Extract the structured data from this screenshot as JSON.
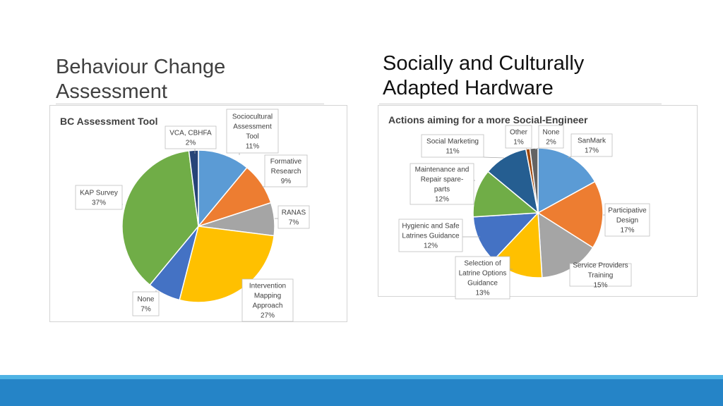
{
  "slide": {
    "left_title": "Behaviour Change Assessment",
    "right_title": "Socially and Culturally Adapted Hardware",
    "colors": {
      "footer_dark": "#2584c7",
      "footer_light": "#4fb3e4"
    }
  },
  "chart_data": [
    {
      "type": "pie",
      "title": "BC Assessment Tool",
      "slices": [
        {
          "label_lines": [
            "Sociocultural",
            "Assessment",
            "Tool",
            "11%"
          ],
          "name": "Sociocultural Assessment Tool",
          "value": 11,
          "color": "#5b9bd5"
        },
        {
          "label_lines": [
            "Formative",
            "Research",
            "9%"
          ],
          "name": "Formative Research",
          "value": 9,
          "color": "#ed7d31"
        },
        {
          "label_lines": [
            "RANAS",
            "7%"
          ],
          "name": "RANAS",
          "value": 7,
          "color": "#a5a5a5"
        },
        {
          "label_lines": [
            "Intervention",
            "Mapping",
            "Approach",
            "27%"
          ],
          "name": "Intervention Mapping Approach",
          "value": 27,
          "color": "#ffc000"
        },
        {
          "label_lines": [
            "None",
            "7%"
          ],
          "name": "None",
          "value": 7,
          "color": "#4472c4"
        },
        {
          "label_lines": [
            "KAP Survey",
            "37%"
          ],
          "name": "KAP Survey",
          "value": 37,
          "color": "#70ad47"
        },
        {
          "label_lines": [
            "VCA, CBHFA",
            "2%"
          ],
          "name": "VCA, CBHFA",
          "value": 2,
          "color": "#264478"
        }
      ]
    },
    {
      "type": "pie",
      "title": "Actions aiming for a more Social-Engineer",
      "slices": [
        {
          "label_lines": [
            "SanMark",
            "17%"
          ],
          "name": "SanMark",
          "value": 17,
          "color": "#5b9bd5"
        },
        {
          "label_lines": [
            "Participative",
            "Design",
            "17%"
          ],
          "name": "Participative Design",
          "value": 17,
          "color": "#ed7d31"
        },
        {
          "label_lines": [
            "Service Providers",
            "Training",
            "15%"
          ],
          "name": "Service Providers Training",
          "value": 15,
          "color": "#a5a5a5"
        },
        {
          "label_lines": [
            "Selection of",
            "Latrine Options",
            "Guidance",
            "13%"
          ],
          "name": "Selection of Latrine Options Guidance",
          "value": 13,
          "color": "#ffc000"
        },
        {
          "label_lines": [
            "Hygienic and Safe",
            "Latrines Guidance",
            "12%"
          ],
          "name": "Hygienic and Safe Latrines Guidance",
          "value": 12,
          "color": "#4472c4"
        },
        {
          "label_lines": [
            "Maintenance and",
            "Repair spare-",
            "parts",
            "12%"
          ],
          "name": "Maintenance and Repair spare-parts",
          "value": 12,
          "color": "#70ad47"
        },
        {
          "label_lines": [
            "Social Marketing",
            "11%"
          ],
          "name": "Social Marketing",
          "value": 11,
          "color": "#255e91"
        },
        {
          "label_lines": [
            "Other",
            "1%"
          ],
          "name": "Other",
          "value": 1,
          "color": "#9e480e"
        },
        {
          "label_lines": [
            "None",
            "2%"
          ],
          "name": "None",
          "value": 2,
          "color": "#636363"
        }
      ]
    }
  ]
}
